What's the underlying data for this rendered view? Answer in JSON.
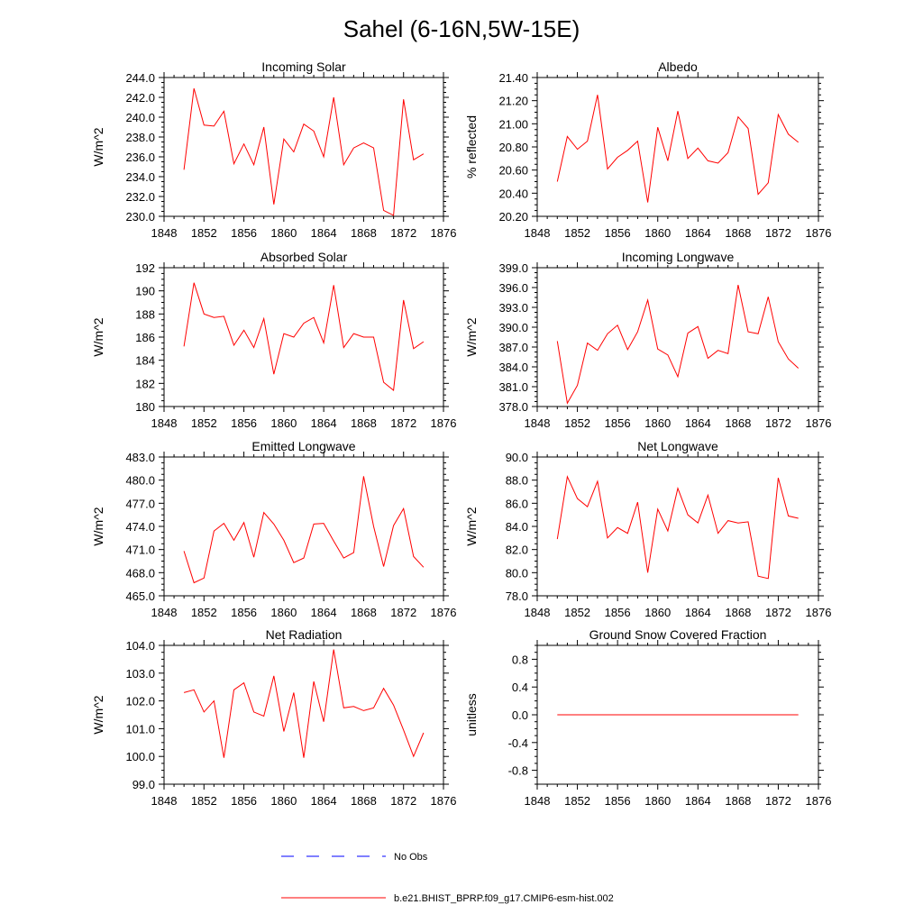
{
  "title": "Sahel (6-16N,5W-15E)",
  "legend": {
    "obs_label": "No Obs",
    "model_label": "b.e21.BHIST_BPRP.f09_g17.CMIP6-esm-hist.002",
    "obs_color": "#0000ff",
    "model_color": "#ff0000"
  },
  "chart_data": [
    {
      "type": "line",
      "title": "Incoming Solar",
      "ylabel": "W/m^2",
      "xlim": [
        1848,
        1876
      ],
      "xticks": [
        1848,
        1852,
        1856,
        1860,
        1864,
        1868,
        1872,
        1876
      ],
      "ylim": [
        230,
        244
      ],
      "yticks": [
        230,
        232,
        234,
        236,
        238,
        240,
        242,
        244
      ],
      "ytick_labels": [
        "230.0",
        "232.0",
        "234.0",
        "236.0",
        "238.0",
        "240.0",
        "242.0",
        "244.0"
      ],
      "x": [
        1850,
        1851,
        1852,
        1853,
        1854,
        1855,
        1856,
        1857,
        1858,
        1859,
        1860,
        1861,
        1862,
        1863,
        1864,
        1865,
        1866,
        1867,
        1868,
        1869,
        1870,
        1871,
        1872,
        1873,
        1874
      ],
      "values": [
        234.7,
        242.9,
        239.2,
        239.1,
        240.6,
        235.3,
        237.3,
        235.2,
        239.0,
        231.2,
        237.8,
        236.5,
        239.3,
        238.6,
        236.0,
        242.0,
        235.2,
        236.9,
        237.4,
        236.9,
        230.6,
        230.1,
        241.8,
        235.7,
        236.3
      ]
    },
    {
      "type": "line",
      "title": "Albedo",
      "ylabel": "% reflected",
      "xlim": [
        1848,
        1876
      ],
      "xticks": [
        1848,
        1852,
        1856,
        1860,
        1864,
        1868,
        1872,
        1876
      ],
      "ylim": [
        20.2,
        21.4
      ],
      "yticks": [
        20.2,
        20.4,
        20.6,
        20.8,
        21.0,
        21.2,
        21.4
      ],
      "ytick_labels": [
        "20.20",
        "20.40",
        "20.60",
        "20.80",
        "21.00",
        "21.20",
        "21.40"
      ],
      "x": [
        1850,
        1851,
        1852,
        1853,
        1854,
        1855,
        1856,
        1857,
        1858,
        1859,
        1860,
        1861,
        1862,
        1863,
        1864,
        1865,
        1866,
        1867,
        1868,
        1869,
        1870,
        1871,
        1872,
        1873,
        1874
      ],
      "values": [
        20.5,
        20.89,
        20.78,
        20.85,
        21.25,
        20.61,
        20.71,
        20.77,
        20.85,
        20.32,
        20.97,
        20.68,
        21.11,
        20.7,
        20.79,
        20.68,
        20.66,
        20.75,
        21.06,
        20.96,
        20.39,
        20.49,
        21.08,
        20.91,
        20.84
      ]
    },
    {
      "type": "line",
      "title": "Absorbed Solar",
      "ylabel": "W/m^2",
      "xlim": [
        1848,
        1876
      ],
      "xticks": [
        1848,
        1852,
        1856,
        1860,
        1864,
        1868,
        1872,
        1876
      ],
      "ylim": [
        180,
        192
      ],
      "yticks": [
        180,
        182,
        184,
        186,
        188,
        190,
        192
      ],
      "ytick_labels": [
        "180",
        "182",
        "184",
        "186",
        "188",
        "190",
        "192"
      ],
      "x": [
        1850,
        1851,
        1852,
        1853,
        1854,
        1855,
        1856,
        1857,
        1858,
        1859,
        1860,
        1861,
        1862,
        1863,
        1864,
        1865,
        1866,
        1867,
        1868,
        1869,
        1870,
        1871,
        1872,
        1873,
        1874
      ],
      "values": [
        185.2,
        190.7,
        188.0,
        187.7,
        187.8,
        185.3,
        186.6,
        185.1,
        187.6,
        182.8,
        186.3,
        186.0,
        187.2,
        187.7,
        185.5,
        190.5,
        185.1,
        186.3,
        186.0,
        186.0,
        182.1,
        181.4,
        189.2,
        185.0,
        185.6
      ]
    },
    {
      "type": "line",
      "title": "Incoming Longwave",
      "ylabel": "W/m^2",
      "xlim": [
        1848,
        1876
      ],
      "xticks": [
        1848,
        1852,
        1856,
        1860,
        1864,
        1868,
        1872,
        1876
      ],
      "ylim": [
        378,
        399
      ],
      "yticks": [
        378,
        381,
        384,
        387,
        390,
        393,
        396,
        399
      ],
      "ytick_labels": [
        "378.0",
        "381.0",
        "384.0",
        "387.0",
        "390.0",
        "393.0",
        "396.0",
        "399.0"
      ],
      "x": [
        1850,
        1851,
        1852,
        1853,
        1854,
        1855,
        1856,
        1857,
        1858,
        1859,
        1860,
        1861,
        1862,
        1863,
        1864,
        1865,
        1866,
        1867,
        1868,
        1869,
        1870,
        1871,
        1872,
        1873,
        1874
      ],
      "values": [
        387.9,
        378.5,
        381.2,
        387.6,
        386.5,
        389.0,
        390.3,
        386.6,
        389.3,
        394.1,
        386.7,
        385.8,
        382.5,
        389.1,
        390.1,
        385.3,
        386.5,
        386.0,
        396.4,
        389.3,
        389.0,
        394.6,
        387.8,
        385.2,
        383.8
      ]
    },
    {
      "type": "line",
      "title": "Emitted Longwave",
      "ylabel": "W/m^2",
      "xlim": [
        1848,
        1876
      ],
      "xticks": [
        1848,
        1852,
        1856,
        1860,
        1864,
        1868,
        1872,
        1876
      ],
      "ylim": [
        465,
        483
      ],
      "yticks": [
        465,
        468,
        471,
        474,
        477,
        480,
        483
      ],
      "ytick_labels": [
        "465.0",
        "468.0",
        "471.0",
        "474.0",
        "477.0",
        "480.0",
        "483.0"
      ],
      "x": [
        1850,
        1851,
        1852,
        1853,
        1854,
        1855,
        1856,
        1857,
        1858,
        1859,
        1860,
        1861,
        1862,
        1863,
        1864,
        1865,
        1866,
        1867,
        1868,
        1869,
        1870,
        1871,
        1872,
        1873,
        1874
      ],
      "values": [
        470.8,
        466.7,
        467.3,
        473.4,
        474.4,
        472.2,
        474.5,
        470.0,
        475.8,
        474.3,
        472.2,
        469.3,
        469.9,
        474.3,
        474.4,
        472.1,
        469.9,
        470.6,
        480.5,
        474.0,
        468.8,
        474.1,
        476.3,
        470.1,
        468.7
      ]
    },
    {
      "type": "line",
      "title": "Net Longwave",
      "ylabel": "W/m^2",
      "xlim": [
        1848,
        1876
      ],
      "xticks": [
        1848,
        1852,
        1856,
        1860,
        1864,
        1868,
        1872,
        1876
      ],
      "ylim": [
        78,
        90
      ],
      "yticks": [
        78,
        80,
        82,
        84,
        86,
        88,
        90
      ],
      "ytick_labels": [
        "78.0",
        "80.0",
        "82.0",
        "84.0",
        "86.0",
        "88.0",
        "90.0"
      ],
      "x": [
        1850,
        1851,
        1852,
        1853,
        1854,
        1855,
        1856,
        1857,
        1858,
        1859,
        1860,
        1861,
        1862,
        1863,
        1864,
        1865,
        1866,
        1867,
        1868,
        1869,
        1870,
        1871,
        1872,
        1873,
        1874
      ],
      "values": [
        82.9,
        88.3,
        86.4,
        85.7,
        87.9,
        83.0,
        83.9,
        83.4,
        86.1,
        80.0,
        85.5,
        83.6,
        87.3,
        85.0,
        84.3,
        86.7,
        83.4,
        84.5,
        84.3,
        84.4,
        79.7,
        79.5,
        88.2,
        84.9,
        84.7
      ]
    },
    {
      "type": "line",
      "title": "Net Radiation",
      "ylabel": "W/m^2",
      "xlim": [
        1848,
        1876
      ],
      "xticks": [
        1848,
        1852,
        1856,
        1860,
        1864,
        1868,
        1872,
        1876
      ],
      "ylim": [
        99,
        104
      ],
      "yticks": [
        99,
        100,
        101,
        102,
        103,
        104
      ],
      "ytick_labels": [
        "99.0",
        "100.0",
        "101.0",
        "102.0",
        "103.0",
        "104.0"
      ],
      "x": [
        1850,
        1851,
        1852,
        1853,
        1854,
        1855,
        1856,
        1857,
        1858,
        1859,
        1860,
        1861,
        1862,
        1863,
        1864,
        1865,
        1866,
        1867,
        1868,
        1869,
        1870,
        1871,
        1872,
        1873,
        1874
      ],
      "values": [
        102.3,
        102.4,
        101.6,
        102.0,
        99.95,
        102.4,
        102.65,
        101.6,
        101.45,
        102.9,
        100.9,
        102.3,
        99.95,
        102.7,
        101.25,
        103.85,
        101.75,
        101.8,
        101.65,
        101.75,
        102.45,
        101.85,
        100.95,
        100.0,
        100.85
      ]
    },
    {
      "type": "line",
      "title": "Ground Snow Covered Fraction",
      "ylabel": "unitless",
      "xlim": [
        1848,
        1876
      ],
      "xticks": [
        1848,
        1852,
        1856,
        1860,
        1864,
        1868,
        1872,
        1876
      ],
      "ylim": [
        -1.0,
        1.0
      ],
      "yticks": [
        -0.8,
        -0.4,
        0.0,
        0.4,
        0.8
      ],
      "ytick_labels": [
        "-0.8",
        "-0.4",
        "0.0",
        "0.4",
        "0.8"
      ],
      "x": [
        1850,
        1851,
        1852,
        1853,
        1854,
        1855,
        1856,
        1857,
        1858,
        1859,
        1860,
        1861,
        1862,
        1863,
        1864,
        1865,
        1866,
        1867,
        1868,
        1869,
        1870,
        1871,
        1872,
        1873,
        1874
      ],
      "values": [
        0,
        0,
        0,
        0,
        0,
        0,
        0,
        0,
        0,
        0,
        0,
        0,
        0,
        0,
        0,
        0,
        0,
        0,
        0,
        0,
        0,
        0,
        0,
        0,
        0
      ]
    }
  ]
}
